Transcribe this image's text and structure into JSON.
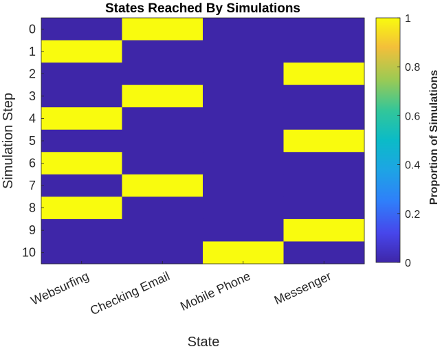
{
  "chart_data": {
    "type": "heatmap",
    "title": "States Reached By Simulations",
    "xlabel": "State",
    "ylabel": "Simulation Step",
    "x_categories": [
      "Websurfing",
      "Checking Email",
      "Mobile Phone",
      "Messenger"
    ],
    "y_categories": [
      "0",
      "1",
      "2",
      "3",
      "4",
      "5",
      "6",
      "7",
      "8",
      "9",
      "10"
    ],
    "values": [
      [
        0,
        1,
        0,
        0
      ],
      [
        1,
        0,
        0,
        0
      ],
      [
        0,
        0,
        0,
        1
      ],
      [
        0,
        1,
        0,
        0
      ],
      [
        1,
        0,
        0,
        0
      ],
      [
        0,
        0,
        0,
        1
      ],
      [
        1,
        0,
        0,
        0
      ],
      [
        0,
        1,
        0,
        0
      ],
      [
        1,
        0,
        0,
        0
      ],
      [
        0,
        0,
        0,
        1
      ],
      [
        0,
        0,
        1,
        0
      ]
    ],
    "colorbar": {
      "label": "Proportion of Simulations",
      "range": [
        0,
        1
      ],
      "ticks": [
        "0",
        "0.2",
        "0.4",
        "0.6",
        "0.8",
        "1"
      ],
      "colormap": "parula"
    },
    "colors": {
      "low": "#3e26a8",
      "high": "#f9fb0e"
    }
  }
}
